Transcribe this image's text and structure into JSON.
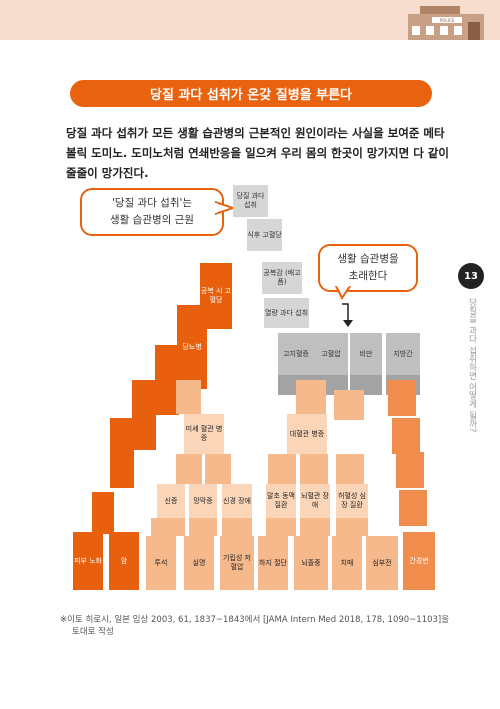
{
  "header": {
    "sign_text": "POLICE"
  },
  "banner": {
    "title": "당질 과다 섭취가 온갖 질병을 부른다"
  },
  "intro": {
    "line1": "당질 과다 섭취가 모든 생활 습관병의 근본적인 원인이라는 사실을 보여준 메타",
    "line2": "볼릭 도미노. 도미노처럼 연쇄반응을 일으켜 우리 몸의 한곳이 망가지면 다 같이",
    "line3": "줄줄이 망가진다."
  },
  "bubbles": {
    "left_line1": "'당질 과다 섭취'는",
    "left_line2": "생활 습관병의 근원",
    "right_line1": "생활 습관병을",
    "right_line2": "초래한다"
  },
  "domino": {
    "sugar_intake": "당질 과다 섭취",
    "postprandial_hyperglycemia": "식후 고혈당",
    "satiety": "공복감 (배고픔)",
    "overeating": "열량 과다 섭취",
    "fasting_hyperglycemia": "공복 시 고혈당",
    "diabetes": "당뇨병",
    "hyperlipidemia": "고지혈증",
    "hypertension": "고혈압",
    "obesity": "비만",
    "fatty_liver": "지방간",
    "microvascular": "미세 혈관 병증",
    "macrovascular": "대혈관 병증",
    "nephropathy": "신증",
    "retinopathy": "망막증",
    "neuropathy": "신경 장애",
    "arteriosclerosis": "말초 동맥 질환",
    "cerebrovascular": "뇌혈관 장애",
    "cardiovascular": "허혈성 심장 질환",
    "skin_aging": "피부 노화",
    "cancer": "암",
    "dialysis": "투석",
    "blindness": "실명",
    "orthostatic_hypotension": "기립성 저혈압",
    "amputation": "하지 절단",
    "stroke": "뇌졸중",
    "dementia": "치매",
    "heart_failure": "심부전",
    "cirrhosis": "간경변"
  },
  "side": {
    "chapter_number": "13",
    "chapter_title": "당질을 과다 섭취하면 어떻게 될까?"
  },
  "footnote": {
    "line1": "※이토 히로시, 일본 임상 2003, 61, 1837~1843에서 [JAMA Intern Med 2018, 178, 1090~1103]을",
    "line2": "토대로 작성"
  },
  "colors": {
    "orange": "#e8620f",
    "grey": "#bfbfbf",
    "peach": "#f6b98c"
  }
}
